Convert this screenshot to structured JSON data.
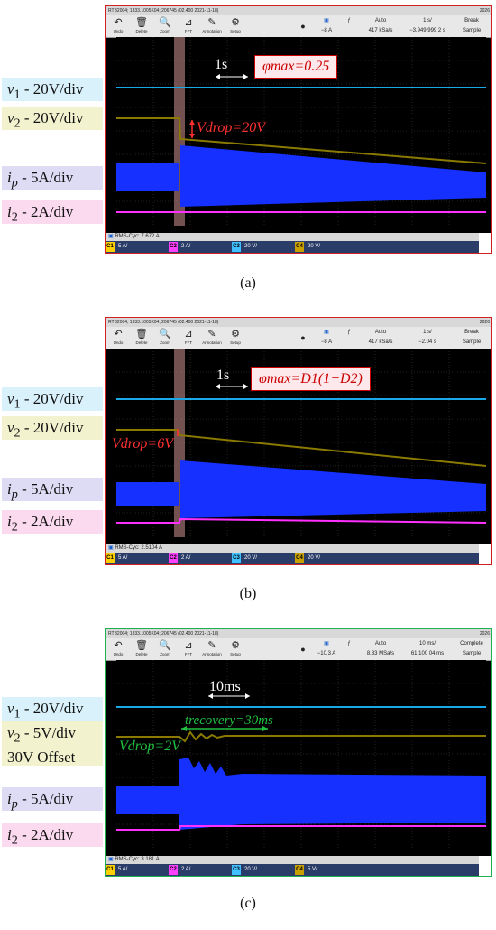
{
  "panels": [
    {
      "caption": "(a)",
      "border_color": "#d02020",
      "scope_title": "RTB2004; 1333.1005K04; 206745 (02.400 2021-11-18)",
      "scope_date": "2026",
      "tools": [
        "Undo",
        "Delete",
        "Zoom",
        "FFT",
        "Annotation",
        "Setup"
      ],
      "trigger": {
        "level": "−8 A",
        "mode": "Auto",
        "rate": "417 kSa/s",
        "timebase": "1 s/",
        "offset": "−3.949 999 2 s",
        "state": "Break",
        "acq": "Sample"
      },
      "status": "RMS-Cyc: 7.672 A",
      "channels": [
        {
          "tag": "C1",
          "value": "5 A/",
          "color": "#ffd000"
        },
        {
          "tag": "C2",
          "value": "2 A/",
          "color": "#ff40ff"
        },
        {
          "tag": "C3",
          "value": "20 V/",
          "color": "#40c0ff"
        },
        {
          "tag": "C4",
          "value": "20 V/",
          "color": "#c8a000"
        }
      ],
      "labels": {
        "v1": "v1 - 20V/div",
        "v2": "v2 - 20V/div",
        "ip": "ip - 5A/div",
        "i2": "i2 - 2A/div"
      },
      "scale_text": "1s",
      "phi_text": "φmax=0.25",
      "vdrop_text": "Vdrop=20V"
    },
    {
      "caption": "(b)",
      "border_color": "#d02020",
      "scope_title": "RTB2004; 1333.1005K04; 206745 (02.400 2021-11-18)",
      "scope_date": "2026",
      "tools": [
        "Undo",
        "Delete",
        "Zoom",
        "FFT",
        "Annotation",
        "Setup"
      ],
      "trigger": {
        "level": "−8 A",
        "mode": "Auto",
        "rate": "417 kSa/s",
        "timebase": "1 s/",
        "offset": "−2.04 s",
        "state": "Break",
        "acq": "Sample"
      },
      "status": "RMS-Cyc: 2.5104 A",
      "channels": [
        {
          "tag": "C1",
          "value": "5 A/",
          "color": "#ffd000"
        },
        {
          "tag": "C2",
          "value": "2 A/",
          "color": "#ff40ff"
        },
        {
          "tag": "C3",
          "value": "20 V/",
          "color": "#40c0ff"
        },
        {
          "tag": "C4",
          "value": "20 V/",
          "color": "#c8a000"
        }
      ],
      "labels": {
        "v1": "v1 - 20V/div",
        "v2": "v2 - 20V/div",
        "ip": "ip - 5A/div",
        "i2": "i2 - 2A/div"
      },
      "scale_text": "1s",
      "phi_text": "φmax=D1(1−D2)",
      "vdrop_text": "Vdrop=6V"
    },
    {
      "caption": "(c)",
      "border_color": "#20b050",
      "scope_title": "RTB2004; 1333.1005K04; 206745 (02.400 2021-11-18)",
      "scope_date": "2026",
      "tools": [
        "Undo",
        "Delete",
        "Zoom",
        "FFT",
        "Annotation",
        "Setup"
      ],
      "trigger": {
        "level": "−10.3 A",
        "mode": "Auto",
        "rate": "8.33 MSa/s",
        "timebase": "10 ms/",
        "offset": "61.100 04 ms",
        "state": "Complete",
        "acq": "Sample"
      },
      "status": "RMS-Cyc: 3.181 A",
      "channels": [
        {
          "tag": "C1",
          "value": "5 A/",
          "color": "#ffd000"
        },
        {
          "tag": "C2",
          "value": "2 A/",
          "color": "#ff40ff"
        },
        {
          "tag": "C3",
          "value": "20 V/",
          "color": "#40c0ff"
        },
        {
          "tag": "C4",
          "value": "5 V/",
          "color": "#c8a000"
        }
      ],
      "labels": {
        "v1": "v1 - 20V/div",
        "v2": "v2 - 5V/div",
        "v2b": "30V Offset",
        "ip": "ip - 5A/div",
        "i2": "i2 - 2A/div"
      },
      "scale_text": "10ms",
      "recovery_text": "trecovery=30ms",
      "vdrop_text": "Vdrop=2V"
    }
  ],
  "colors": {
    "v1_bg": "#d9f1fb",
    "v2_bg": "#f2f2cf",
    "ip_bg": "#dedbf5",
    "i2_bg": "#fbd9ef",
    "ip_trace": "#1530ff",
    "v1_trace": "#19a8e8",
    "v2_trace": "#8a7a00",
    "i2_trace": "#ff30ff"
  }
}
